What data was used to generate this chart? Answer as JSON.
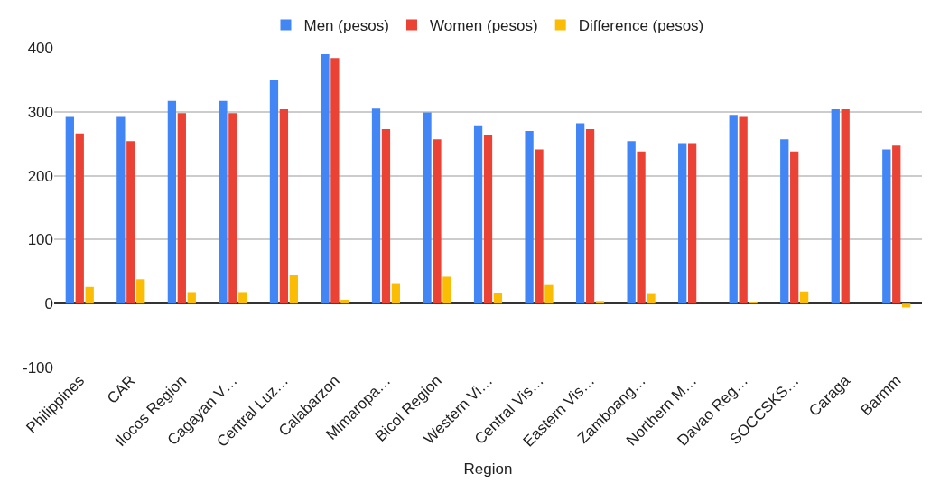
{
  "chart_data": {
    "type": "bar",
    "xlabel": "Region",
    "categories": [
      "Philippines",
      "CAR",
      "Ilocos Region",
      "Cagayan V…",
      "Central Luz…",
      "Calabarzon",
      "Mimaropa…",
      "Bicol Region",
      "Western Vi…",
      "Central Vis…",
      "Eastern Vis…",
      "Zamboang…",
      "Northern M…",
      "Davao Reg…",
      "SOCCSKS…",
      "Caraga",
      "Barmm"
    ],
    "series": [
      {
        "name": "Men (pesos)",
        "color": "#4285f4",
        "values": [
          292,
          292,
          317,
          317,
          349,
          390,
          305,
          299,
          279,
          270,
          282,
          254,
          251,
          295,
          257,
          304,
          241
        ]
      },
      {
        "name": "Women (pesos)",
        "color": "#ea4335",
        "values": [
          266,
          254,
          298,
          298,
          304,
          384,
          273,
          257,
          263,
          241,
          273,
          238,
          251,
          292,
          238,
          304,
          247
        ]
      },
      {
        "name": "Difference (pesos)",
        "color": "#fbbc04",
        "values": [
          26,
          38,
          18,
          18,
          45,
          6,
          32,
          42,
          16,
          29,
          4,
          15,
          0,
          3,
          19,
          0,
          -6
        ]
      }
    ],
    "ylim": [
      -100,
      400
    ],
    "yticks": [
      -100,
      0,
      100,
      200,
      300,
      400
    ],
    "grid": "y",
    "legend": "top"
  }
}
